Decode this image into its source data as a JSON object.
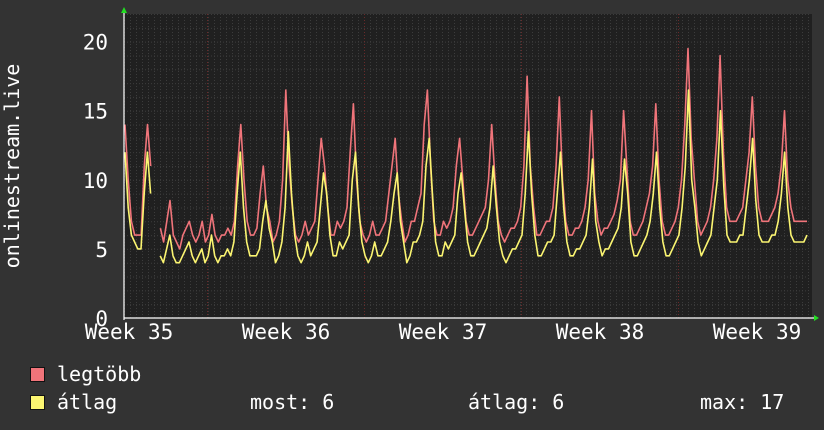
{
  "chart_data": {
    "type": "line",
    "ylabel": "onlinestream.live",
    "ylim": [
      0,
      22
    ],
    "y_ticks": [
      "0",
      "5",
      "10",
      "15",
      "20"
    ],
    "x_ticks": [
      "Week 35",
      "Week 36",
      "Week 37",
      "Week 38",
      "Week 39"
    ],
    "grid": true,
    "colors": {
      "legtobb": "#f0747a",
      "atlag": "#fbf571",
      "background": "#333333",
      "plot_bg": "#202020"
    },
    "series": [
      {
        "name": "legtöbb",
        "values": [
          14,
          10,
          7,
          6,
          6,
          6,
          11,
          14,
          11,
          null,
          null,
          6.5,
          5.5,
          7,
          8.5,
          6,
          5.5,
          5,
          6,
          6.5,
          7,
          6,
          5.5,
          6,
          7,
          5.5,
          6,
          7.5,
          6,
          5.5,
          6,
          6,
          6.5,
          6,
          7,
          11,
          14,
          10,
          7,
          6,
          6,
          6.5,
          9,
          11,
          8,
          7,
          5.5,
          6,
          7,
          10,
          16.5,
          11,
          8,
          6,
          5.5,
          6,
          7,
          6,
          6.5,
          7,
          10,
          13,
          11,
          8,
          6,
          6,
          7,
          6.5,
          7,
          8,
          12,
          15.5,
          10,
          7,
          6,
          5.5,
          6,
          7,
          6,
          6,
          6.5,
          7,
          9,
          11,
          13,
          9,
          7,
          5.5,
          6,
          7,
          7,
          8,
          9,
          14,
          16.5,
          11,
          7,
          6,
          6,
          7,
          6.5,
          7,
          8,
          11,
          13,
          10,
          7,
          6,
          6,
          6.5,
          7,
          7.5,
          8,
          10,
          14,
          10,
          7,
          6,
          5.5,
          6,
          6.5,
          6.5,
          7,
          8,
          11,
          17.5,
          11,
          8,
          6,
          6,
          6.5,
          7,
          7,
          8,
          11,
          16,
          10,
          7,
          6,
          6,
          6.5,
          6.5,
          7,
          8,
          10,
          15,
          9,
          7,
          6,
          6.5,
          6.5,
          7,
          7.5,
          8.5,
          10,
          15,
          11,
          7,
          6,
          6,
          6.5,
          7,
          8,
          9,
          11,
          15.5,
          10,
          7,
          6,
          6,
          6.5,
          7,
          8,
          10,
          14,
          19.5,
          13,
          10,
          7,
          6,
          6.5,
          7,
          8,
          10,
          13,
          19,
          12,
          8,
          7,
          7,
          7,
          7.5,
          8,
          10,
          12,
          16,
          11,
          8,
          7,
          7,
          7,
          7.5,
          8,
          9,
          11,
          15,
          10,
          8,
          7,
          7,
          7,
          7,
          7
        ]
      },
      {
        "name": "átlag",
        "values": [
          12,
          8,
          6,
          5.5,
          5,
          5,
          9,
          12,
          9,
          null,
          null,
          4.5,
          4,
          5,
          6,
          4.5,
          4,
          4,
          4.5,
          5,
          5.5,
          4.5,
          4,
          4.5,
          5,
          4,
          4.5,
          6,
          4.5,
          4,
          4.5,
          4.5,
          5,
          4.5,
          5.5,
          9,
          12,
          8,
          5.5,
          4.5,
          4.5,
          4.5,
          5,
          7,
          8.5,
          6.5,
          5.5,
          4,
          4.5,
          5.5,
          8,
          13.5,
          9,
          6,
          4.5,
          4,
          4.5,
          5.5,
          4.5,
          5,
          5.5,
          8,
          10.5,
          9,
          6,
          4.5,
          4.5,
          5.5,
          5,
          5.5,
          6,
          10,
          12,
          8,
          5.5,
          4.5,
          4,
          4.5,
          5.5,
          4.5,
          4.5,
          5,
          5.5,
          7,
          9,
          10.5,
          7,
          5.5,
          4,
          4.5,
          5.5,
          5.5,
          6,
          7,
          11,
          13,
          9,
          5.5,
          4.5,
          4.5,
          5.5,
          5,
          5.5,
          6,
          9,
          10.5,
          8,
          5.5,
          4.5,
          4.5,
          5,
          5.5,
          6,
          6.5,
          8,
          11,
          8,
          5.5,
          4.5,
          4,
          4.5,
          5,
          5,
          5.5,
          6,
          9,
          13.5,
          9,
          6,
          4.5,
          4.5,
          5,
          5.5,
          5.5,
          6,
          9,
          12,
          8,
          5.5,
          4.5,
          4.5,
          5,
          5,
          5.5,
          6,
          8,
          11.5,
          7,
          5.5,
          4.5,
          5,
          5,
          5.5,
          6,
          6.5,
          8,
          11.5,
          9,
          5.5,
          4.5,
          4.5,
          5,
          5.5,
          6,
          7,
          9,
          12,
          8,
          5.5,
          4.5,
          4.5,
          5,
          5.5,
          6,
          8,
          11,
          16.5,
          10,
          8,
          5.5,
          4.5,
          5,
          5.5,
          6,
          8,
          10,
          15,
          9.5,
          6,
          5.5,
          5.5,
          5.5,
          6,
          6,
          8,
          10,
          13,
          8.5,
          6,
          5.5,
          5.5,
          5.5,
          6,
          6,
          7,
          9,
          12,
          8,
          6,
          5.5,
          5.5,
          5.5,
          5.5,
          6
        ]
      }
    ]
  },
  "legend": [
    {
      "label": "legtöbb",
      "color": "#f0747a"
    },
    {
      "label": "átlag",
      "color": "#fbf571"
    }
  ],
  "stats": {
    "most_label": "most:",
    "most_value": "6",
    "atlag_label": "átlag:",
    "atlag_value": "6",
    "max_label": "max:",
    "max_value": "17"
  }
}
